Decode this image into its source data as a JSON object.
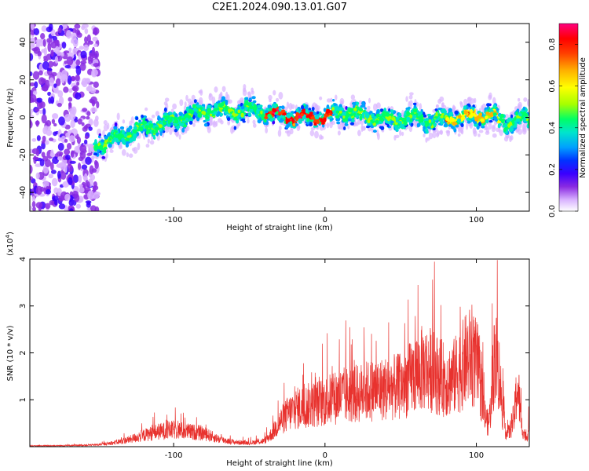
{
  "title": "C2E1.2024.090.13.01.G07",
  "chart_data": [
    {
      "type": "heatmap",
      "xlabel": "Height of straight line (km)",
      "ylabel": "Frequency (Hz)",
      "xlim": [
        -195,
        135
      ],
      "ylim": [
        -50,
        50
      ],
      "xticks": [
        -100,
        0,
        100
      ],
      "yticks": [
        -40,
        -20,
        0,
        20,
        40
      ],
      "colorbar": {
        "label": "Normalized spectral amplitude",
        "range": [
          0.0,
          0.9
        ],
        "ticks": [
          0.0,
          0.2,
          0.4,
          0.6,
          0.8
        ],
        "colormap": [
          "#ffffff",
          "#d9b3ff",
          "#8a2be2",
          "#3a00ff",
          "#0033ff",
          "#00a0ff",
          "#00e5cc",
          "#00ff66",
          "#a6ff00",
          "#ffff00",
          "#ffb000",
          "#ff4000",
          "#ff0000",
          "#ff007f"
        ]
      },
      "ridge_frequency": {
        "x": [
          -150,
          -140,
          -130,
          -120,
          -110,
          -100,
          -90,
          -80,
          -70,
          -60,
          -50,
          -40,
          -30,
          -20,
          -10,
          0,
          10,
          20,
          30,
          40,
          50,
          60,
          70,
          80,
          90,
          100,
          110,
          120,
          130
        ],
        "y": [
          -14,
          -12,
          -9,
          -6,
          -4,
          -2,
          1,
          3,
          4,
          3,
          4,
          3,
          1,
          0,
          0,
          0,
          3,
          2,
          0,
          -1,
          -1,
          0,
          -2,
          -1,
          0,
          1,
          1,
          -3,
          -1
        ]
      }
    },
    {
      "type": "line",
      "xlabel": "Height of straight line (km)",
      "ylabel": "SNR (10 * v/v)",
      "multiplier_label": "(x10",
      "multiplier_exp": "4",
      "multiplier_close": ")",
      "xlim": [
        -195,
        135
      ],
      "ylim": [
        0,
        4
      ],
      "xticks": [
        -100,
        0,
        100
      ],
      "yticks": [
        1,
        2,
        3,
        4
      ],
      "color": "#e8322e",
      "envelope": {
        "x": [
          -195,
          -170,
          -150,
          -140,
          -130,
          -120,
          -110,
          -100,
          -90,
          -80,
          -70,
          -60,
          -50,
          -40,
          -35,
          -30,
          -25,
          -20,
          -10,
          0,
          10,
          20,
          30,
          40,
          50,
          55,
          60,
          65,
          70,
          75,
          80,
          85,
          90,
          95,
          100,
          103,
          105,
          108,
          110,
          112,
          115,
          118,
          120,
          122,
          125,
          127,
          128,
          130,
          133,
          135
        ],
        "y": [
          0.02,
          0.03,
          0.05,
          0.1,
          0.18,
          0.3,
          0.4,
          0.45,
          0.4,
          0.35,
          0.2,
          0.12,
          0.1,
          0.15,
          0.35,
          0.65,
          0.85,
          1.0,
          1.1,
          1.2,
          1.35,
          1.4,
          1.5,
          1.55,
          1.6,
          1.75,
          1.95,
          2.1,
          2.05,
          1.9,
          1.75,
          1.85,
          2.1,
          2.4,
          2.2,
          1.6,
          0.9,
          0.6,
          1.2,
          2.5,
          2.0,
          0.7,
          0.35,
          0.4,
          0.8,
          1.6,
          1.4,
          0.55,
          0.2,
          0.55
        ]
      }
    }
  ]
}
